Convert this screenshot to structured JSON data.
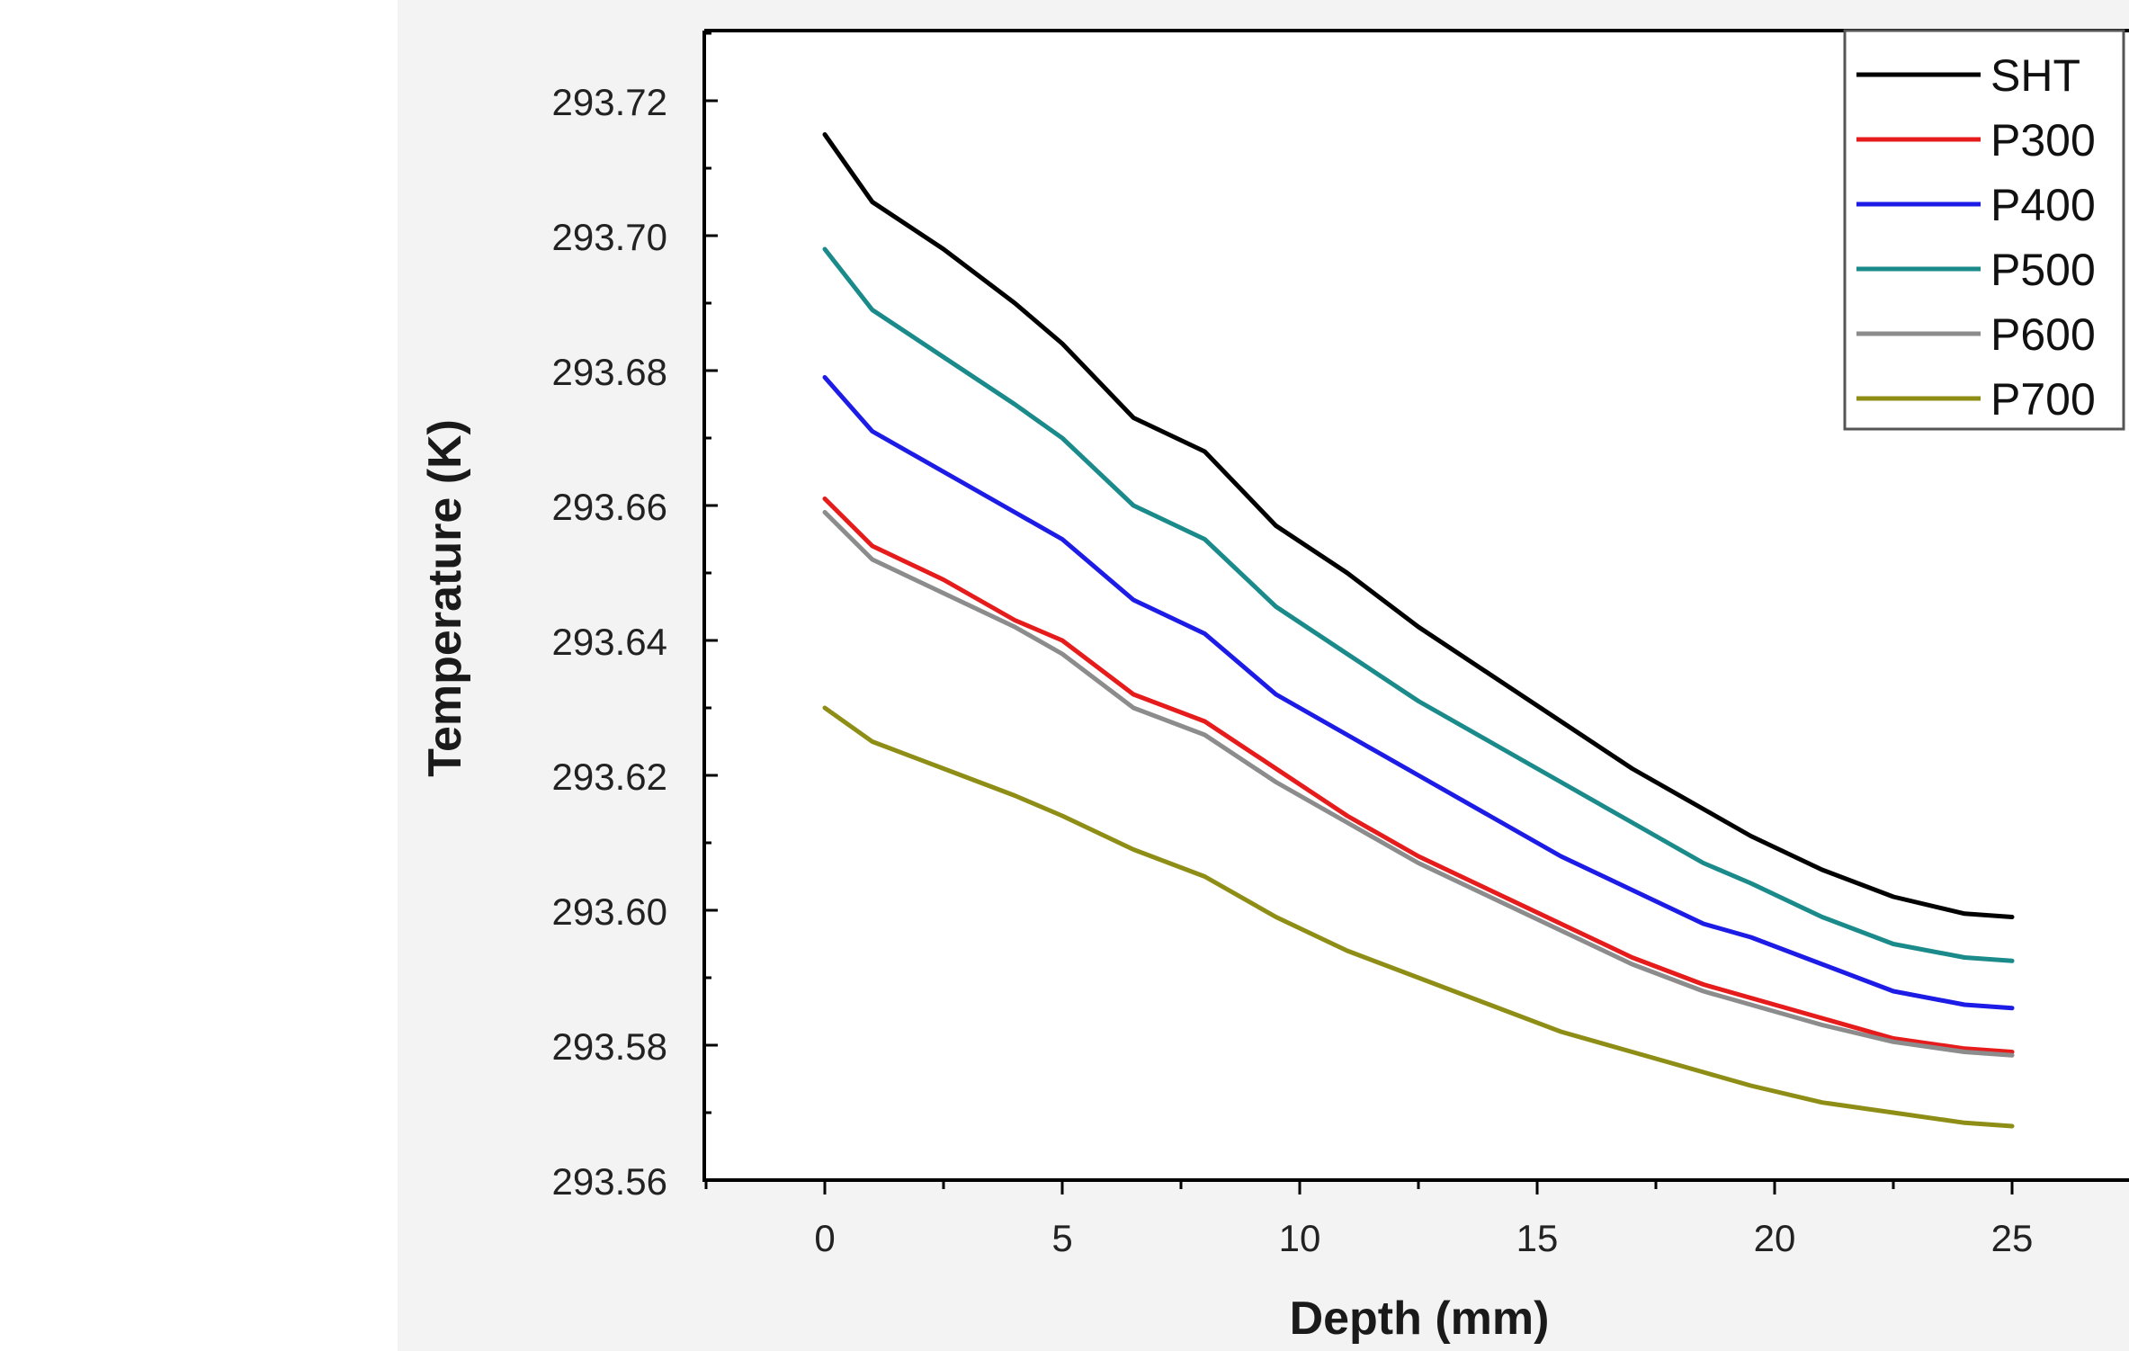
{
  "chart_data": {
    "type": "line",
    "xlabel": "Depth (mm)",
    "ylabel": "Temperature (K)",
    "xlim": [
      -2.5,
      27.5
    ],
    "ylim": [
      293.56,
      293.73
    ],
    "xticks": [
      0,
      5,
      10,
      15,
      20,
      25
    ],
    "xtick_labels": [
      "0",
      "5",
      "10",
      "15",
      "20",
      "25"
    ],
    "yticks": [
      293.56,
      293.58,
      293.6,
      293.62,
      293.64,
      293.66,
      293.68,
      293.7,
      293.72
    ],
    "ytick_labels": [
      "293.56",
      "293.58",
      "293.60",
      "293.62",
      "293.64",
      "293.66",
      "293.68",
      "293.70",
      "293.72"
    ],
    "legend_position": "top-right",
    "x": [
      0,
      1,
      2.5,
      4,
      5,
      6.5,
      8,
      9.5,
      11,
      12.5,
      14,
      15.5,
      17,
      18.5,
      19.5,
      21,
      22.5,
      24,
      25
    ],
    "series": [
      {
        "name": "SHT",
        "color": "#000000",
        "values": [
          293.715,
          293.705,
          293.698,
          293.69,
          293.684,
          293.673,
          293.668,
          293.657,
          293.65,
          293.642,
          293.635,
          293.628,
          293.621,
          293.615,
          293.611,
          293.606,
          293.602,
          293.5995,
          293.599
        ]
      },
      {
        "name": "P300",
        "color": "#e61c1c",
        "values": [
          293.661,
          293.654,
          293.649,
          293.643,
          293.64,
          293.632,
          293.628,
          293.621,
          293.614,
          293.608,
          293.603,
          293.598,
          293.593,
          293.589,
          293.587,
          293.584,
          293.581,
          293.5795,
          293.579
        ]
      },
      {
        "name": "P400",
        "color": "#1c1ce6",
        "values": [
          293.679,
          293.671,
          293.665,
          293.659,
          293.655,
          293.646,
          293.641,
          293.632,
          293.626,
          293.62,
          293.614,
          293.608,
          293.603,
          293.598,
          293.596,
          293.592,
          293.588,
          293.586,
          293.5855
        ]
      },
      {
        "name": "P500",
        "color": "#1a8a8a",
        "values": [
          293.698,
          293.689,
          293.682,
          293.675,
          293.67,
          293.66,
          293.655,
          293.645,
          293.638,
          293.631,
          293.625,
          293.619,
          293.613,
          293.607,
          293.604,
          293.599,
          293.595,
          293.593,
          293.5925
        ]
      },
      {
        "name": "P600",
        "color": "#8c8c8c",
        "values": [
          293.659,
          293.652,
          293.647,
          293.642,
          293.638,
          293.63,
          293.626,
          293.619,
          293.613,
          293.607,
          293.602,
          293.597,
          293.592,
          293.588,
          293.586,
          293.583,
          293.5805,
          293.579,
          293.5785
        ]
      },
      {
        "name": "P700",
        "color": "#8e8e16",
        "values": [
          293.63,
          293.625,
          293.621,
          293.617,
          293.614,
          293.609,
          293.605,
          293.599,
          293.594,
          293.59,
          293.586,
          293.582,
          293.579,
          293.576,
          293.574,
          293.5715,
          293.57,
          293.5685,
          293.568
        ]
      }
    ]
  }
}
